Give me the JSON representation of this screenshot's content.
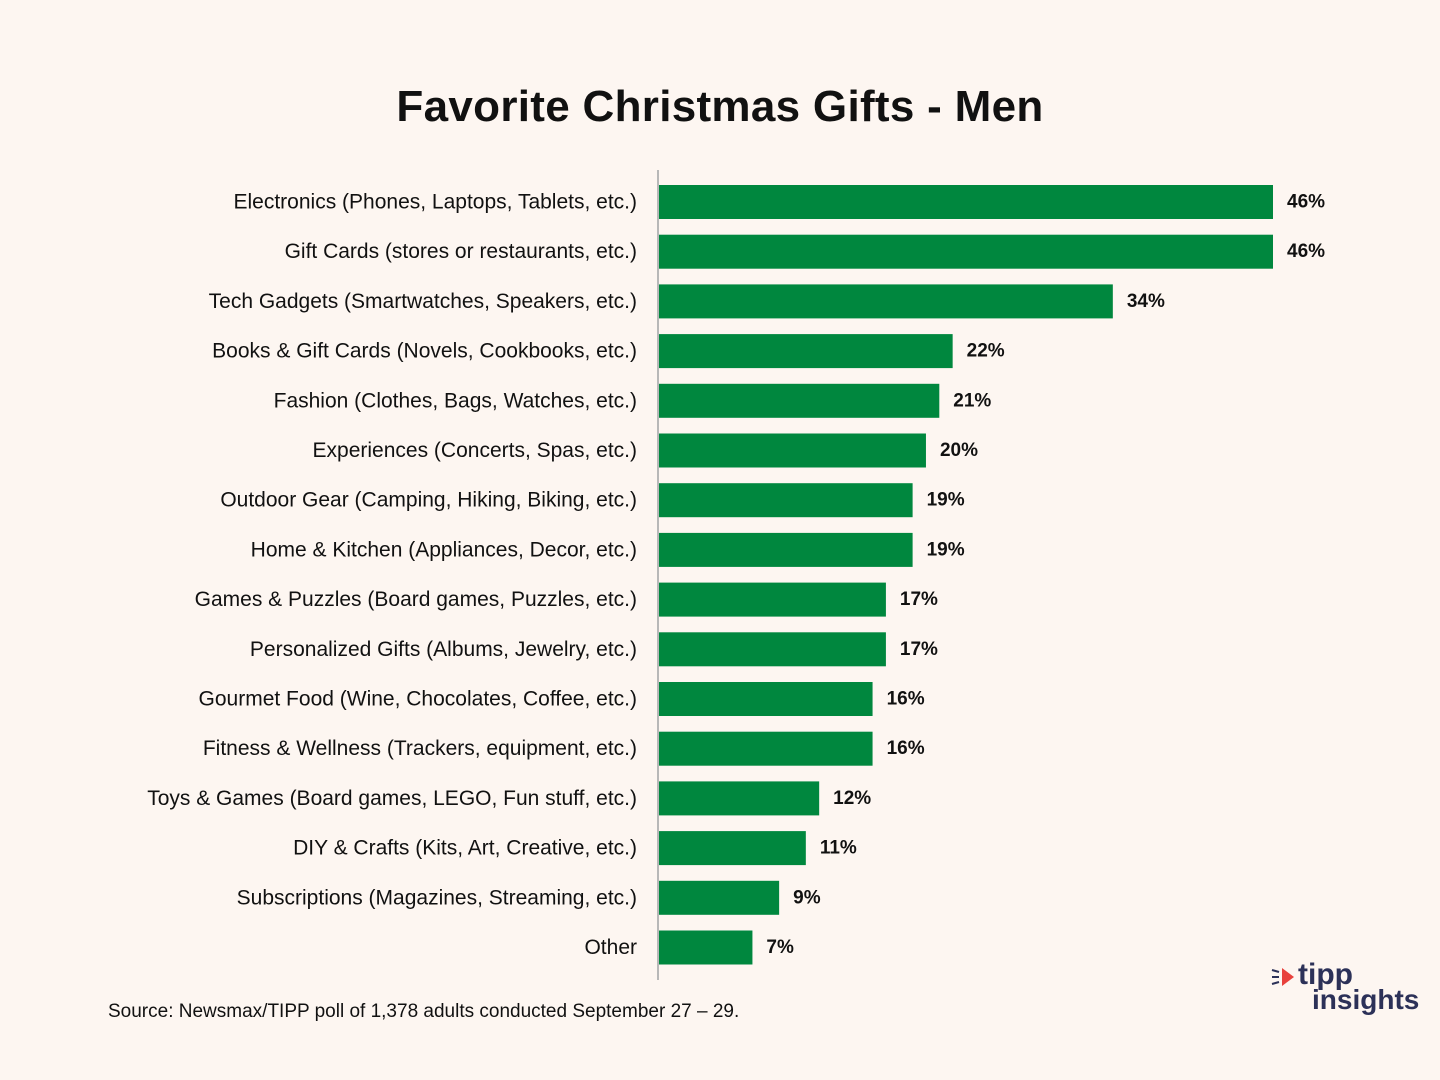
{
  "chart_data": {
    "type": "bar",
    "orientation": "horizontal",
    "title": "Favorite Christmas Gifts - Men",
    "categories": [
      "Electronics (Phones, Laptops, Tablets, etc.)",
      "Gift Cards (stores or restaurants, etc.)",
      "Tech Gadgets (Smartwatches, Speakers, etc.)",
      "Books & Gift Cards (Novels, Cookbooks, etc.)",
      "Fashion (Clothes, Bags, Watches, etc.)",
      "Experiences (Concerts, Spas, etc.)",
      "Outdoor Gear (Camping, Hiking, Biking, etc.)",
      "Home & Kitchen (Appliances, Decor, etc.)",
      "Games & Puzzles (Board games, Puzzles, etc.)",
      "Personalized Gifts (Albums, Jewelry, etc.)",
      "Gourmet Food (Wine, Chocolates, Coffee, etc.)",
      "Fitness & Wellness (Trackers, equipment, etc.)",
      "Toys & Games (Board games, LEGO, Fun stuff, etc.)",
      "DIY & Crafts (Kits, Art, Creative, etc.)",
      "Subscriptions (Magazines, Streaming, etc.)",
      "Other"
    ],
    "values": [
      46,
      46,
      34,
      22,
      21,
      20,
      19,
      19,
      17,
      17,
      16,
      16,
      12,
      11,
      9,
      7
    ],
    "value_labels": [
      "46%",
      "46%",
      "34%",
      "22%",
      "21%",
      "20%",
      "19%",
      "19%",
      "17%",
      "17%",
      "16%",
      "16%",
      "12%",
      "11%",
      "9%",
      "7%"
    ],
    "unit": "%",
    "bar_color": "#00873e",
    "axis_line_color": "#b8b8b8",
    "grid": false,
    "legend": "none"
  },
  "source_text": "Source: Newsmax/TIPP poll of 1,378 adults conducted September 27 – 29.",
  "logo": {
    "line1": "tipp",
    "line2": "insights",
    "accent_color": "#e8413c",
    "text_color": "#2c3158"
  },
  "background_color": "#fdf6f1"
}
